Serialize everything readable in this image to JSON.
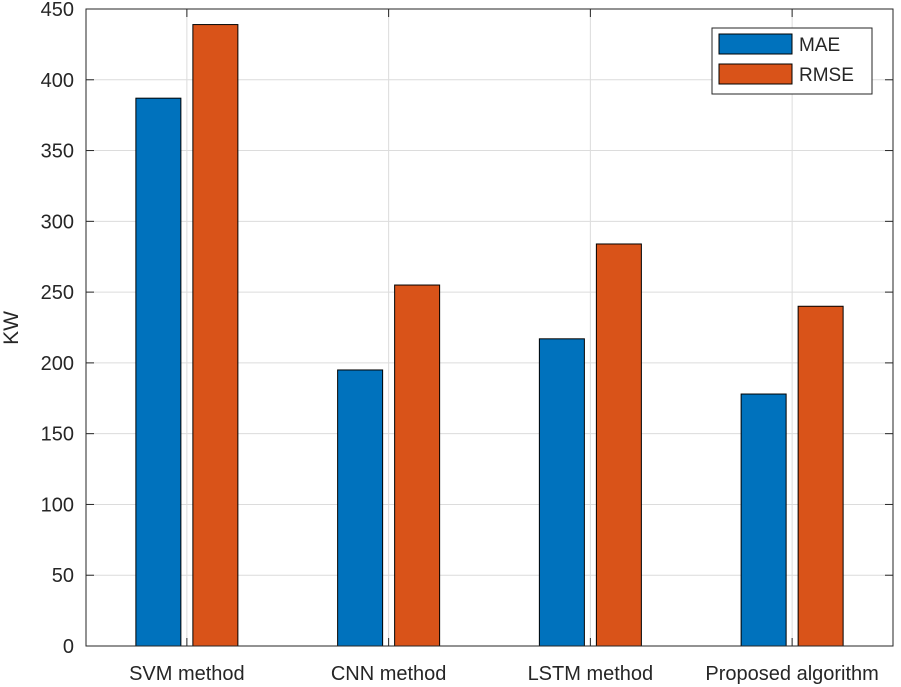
{
  "chart_data": {
    "type": "bar",
    "title": "",
    "xlabel": "",
    "ylabel": "KW",
    "ylim": [
      0,
      450
    ],
    "yticks": [
      0,
      50,
      100,
      150,
      200,
      250,
      300,
      350,
      400,
      450
    ],
    "grid": true,
    "legend_position": "top-right",
    "categories": [
      "SVM method",
      "CNN method",
      "LSTM method",
      "Proposed algorithm"
    ],
    "series": [
      {
        "name": "MAE",
        "color": "#0072BD",
        "values": [
          387,
          195,
          217,
          178
        ]
      },
      {
        "name": "RMSE",
        "color": "#D95319",
        "values": [
          439,
          255,
          284,
          240
        ]
      }
    ]
  }
}
